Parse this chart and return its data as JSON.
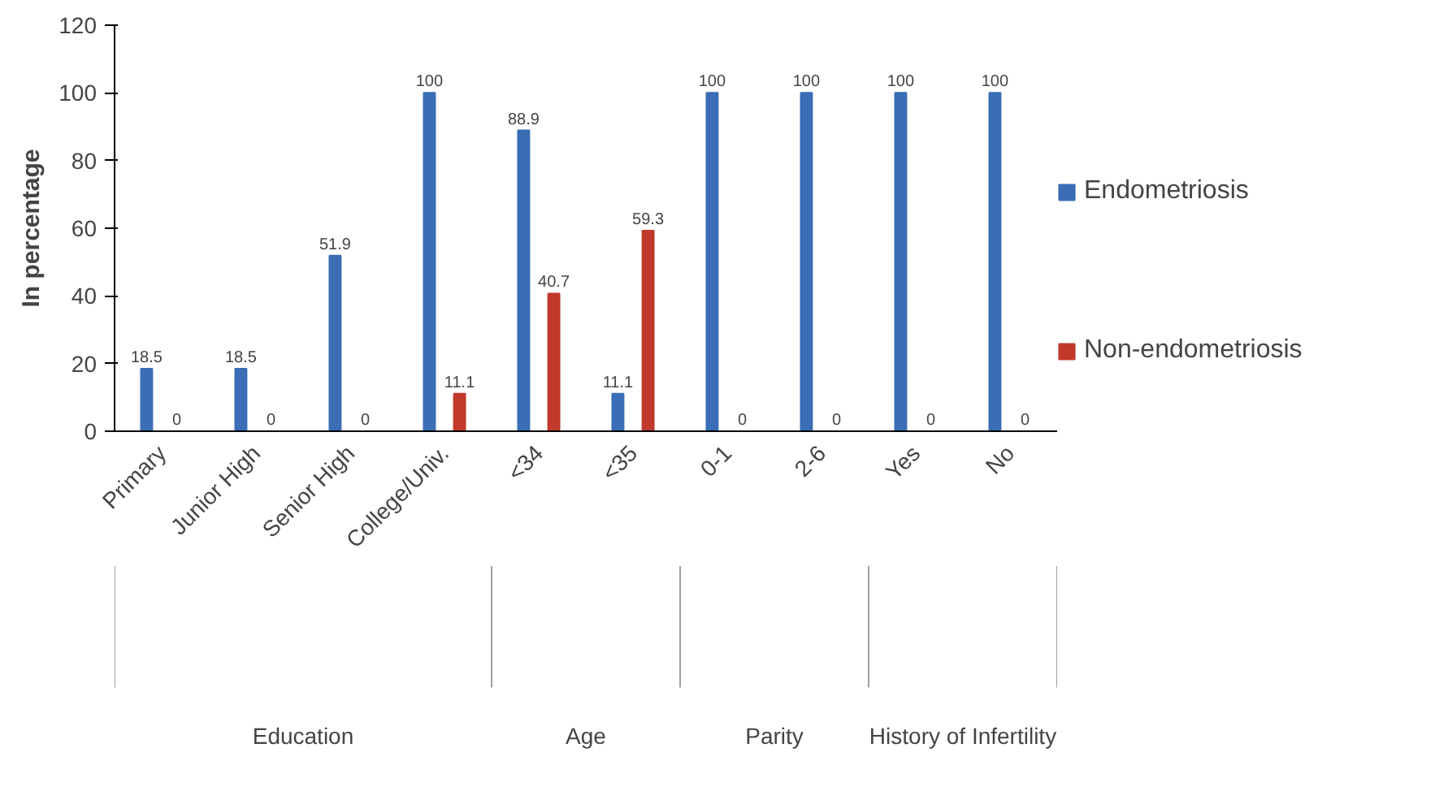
{
  "chart_data": {
    "type": "bar",
    "ylabel": "In percentage",
    "categories": [
      "Primary",
      "Junior High",
      "Senior High",
      "College/Univ.",
      "<34",
      "<35",
      "0-1",
      "2-6",
      "Yes",
      "No"
    ],
    "series": [
      {
        "name": "Endometriosis",
        "color": "#3a6db5",
        "values": [
          18.5,
          18.5,
          51.9,
          100,
          88.9,
          11.1,
          100,
          100,
          100,
          100
        ]
      },
      {
        "name": "Non-endometriosis",
        "color": "#c0392b",
        "values": [
          0,
          0,
          0,
          11.1,
          40.7,
          59.3,
          0,
          0,
          0,
          0
        ]
      }
    ],
    "ylim": [
      0,
      120
    ],
    "yticks": [
      0,
      20,
      40,
      60,
      80,
      100,
      120
    ],
    "grid": false,
    "legend": "right",
    "data_labels": true,
    "annotations": [
      "Education",
      "Age",
      "Parity",
      "History of Infertility"
    ]
  }
}
